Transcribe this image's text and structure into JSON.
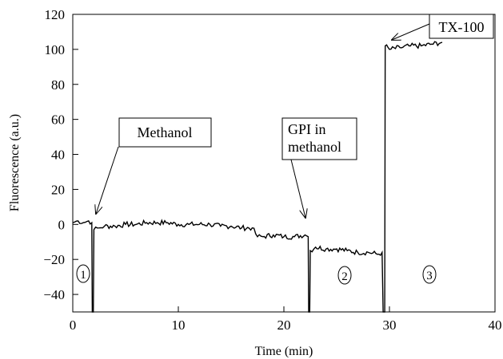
{
  "chart_data": {
    "type": "line",
    "xlabel": "Time (min)",
    "ylabel": "Fluorescence (a.u.)",
    "xlim": [
      0,
      40
    ],
    "ylim": [
      -50,
      120
    ],
    "xticks": [
      0,
      10,
      20,
      30,
      40
    ],
    "yticks": [
      -40,
      -20,
      0,
      20,
      40,
      60,
      80,
      100,
      120
    ],
    "grid": false,
    "series": [
      {
        "color": "#000000",
        "points": [
          [
            0,
            1
          ],
          [
            0.5,
            2
          ],
          [
            1,
            1
          ],
          [
            1.5,
            2
          ],
          [
            1.8,
            1
          ],
          [
            1.85,
            -50
          ],
          [
            1.95,
            -50
          ],
          [
            2.0,
            -3
          ],
          [
            2.5,
            -2
          ],
          [
            3,
            -1
          ],
          [
            4,
            -1
          ],
          [
            5,
            0
          ],
          [
            6,
            0
          ],
          [
            7,
            1
          ],
          [
            8,
            1
          ],
          [
            9,
            1
          ],
          [
            10,
            0
          ],
          [
            11,
            0
          ],
          [
            12,
            0
          ],
          [
            13,
            0
          ],
          [
            14,
            -1
          ],
          [
            15,
            -1
          ],
          [
            16,
            -2
          ],
          [
            17,
            -2
          ],
          [
            17.5,
            -7
          ],
          [
            18,
            -7
          ],
          [
            19,
            -6
          ],
          [
            20,
            -7
          ],
          [
            21,
            -7
          ],
          [
            22,
            -6
          ],
          [
            22.3,
            -7
          ],
          [
            22.35,
            -50
          ],
          [
            22.45,
            -50
          ],
          [
            22.5,
            -15
          ],
          [
            23,
            -13
          ],
          [
            24,
            -14
          ],
          [
            25,
            -14
          ],
          [
            26,
            -15
          ],
          [
            27,
            -16
          ],
          [
            28,
            -16
          ],
          [
            29,
            -17
          ],
          [
            29.3,
            -16
          ],
          [
            29.4,
            -50
          ],
          [
            29.55,
            -50
          ],
          [
            29.6,
            102
          ],
          [
            30,
            100
          ],
          [
            31,
            101
          ],
          [
            32,
            102
          ],
          [
            33,
            102
          ],
          [
            34,
            103
          ],
          [
            35,
            104
          ]
        ]
      }
    ],
    "annotations": [
      {
        "text": "Methanol",
        "points_to": [
          2.1,
          2
        ]
      },
      {
        "lines": [
          "GPI in",
          "methanol"
        ],
        "points_to": [
          22.3,
          -1
        ]
      },
      {
        "text": "TX-100",
        "points_to": [
          29.8,
          103
        ]
      }
    ],
    "region_labels": [
      "1",
      "2",
      "3"
    ]
  }
}
